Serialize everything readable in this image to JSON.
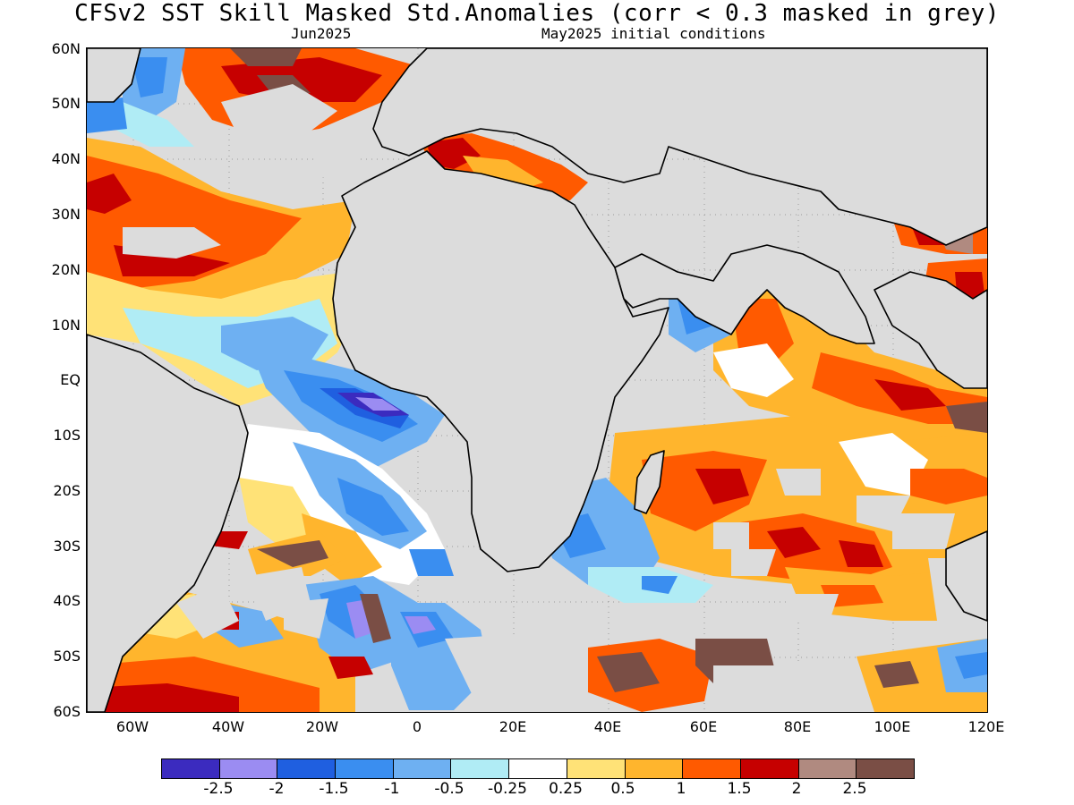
{
  "title": "CFSv2  SST Skill Masked Std.Anomalies (corr < 0.3 masked in grey)",
  "subtitle_left": "Jun2025",
  "subtitle_right": "May2025 initial conditions",
  "mask_color": "#dcdcdc",
  "lat_labels": [
    "60N",
    "50N",
    "40N",
    "30N",
    "20N",
    "10N",
    "EQ",
    "10S",
    "20S",
    "30S",
    "40S",
    "50S",
    "60S"
  ],
  "lon_labels": [
    "60W",
    "40W",
    "20W",
    "0",
    "20E",
    "40E",
    "60E",
    "80E",
    "100E",
    "120E"
  ],
  "colorbar": {
    "colors": [
      "#3b2bbf",
      "#9b8cf2",
      "#1f5fe0",
      "#3a8ef0",
      "#6eb0f2",
      "#b0ecf5",
      "#ffffff",
      "#ffe277",
      "#ffb52d",
      "#ff5a00",
      "#c60000",
      "#b08a80",
      "#7a4e45"
    ],
    "labels": [
      "-2.5",
      "-2",
      "-1.5",
      "-1",
      "-0.5",
      "-0.25",
      "0.25",
      "0.5",
      "1",
      "1.5",
      "2",
      "2.5"
    ]
  }
}
